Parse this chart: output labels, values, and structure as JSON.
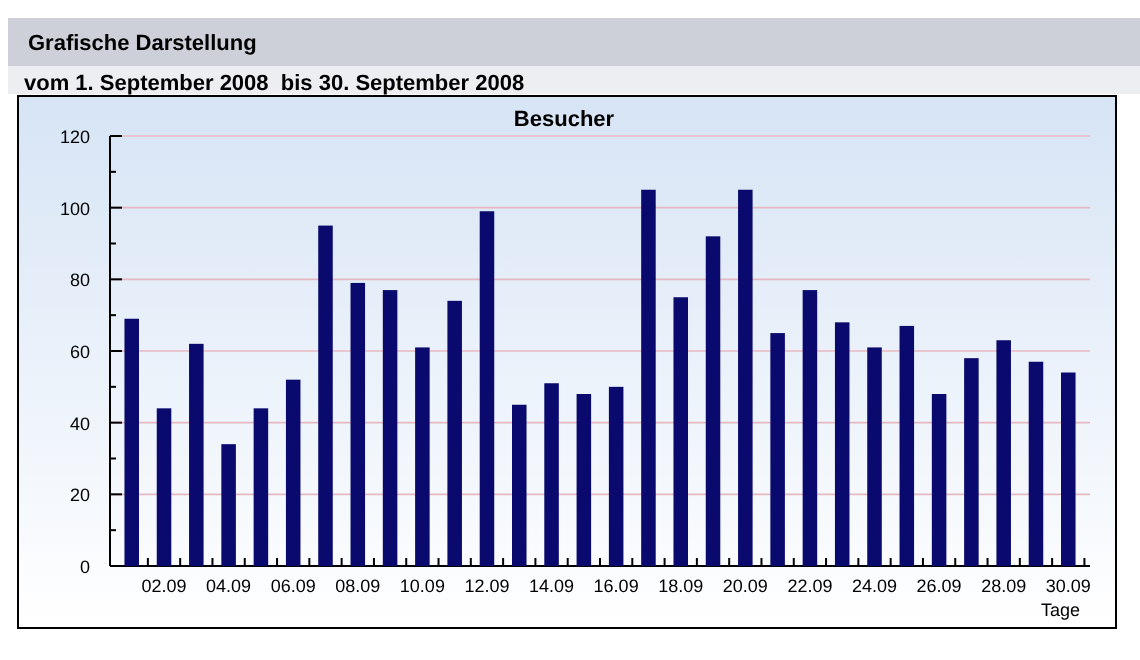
{
  "chart_data": {
    "type": "bar",
    "title": "Grafische Darstellung",
    "subtitle": "vom 1. September 2008  bis 30. September 2008",
    "annotations": [
      "Besucher"
    ],
    "xlabel": "Tage",
    "categories": [
      null,
      "02.09",
      null,
      "04.09",
      null,
      "06.09",
      null,
      "08.09",
      null,
      "10.09",
      null,
      "12.09",
      null,
      "14.09",
      null,
      "16.09",
      null,
      "18.09",
      null,
      "20.09",
      null,
      "22.09",
      null,
      "24.09",
      null,
      "26.09",
      null,
      "28.09",
      null,
      "30.09"
    ],
    "values": [
      69,
      44,
      62,
      34,
      44,
      52,
      95,
      79,
      77,
      61,
      74,
      99,
      45,
      51,
      48,
      50,
      105,
      75,
      92,
      105,
      65,
      77,
      68,
      61,
      67,
      48,
      58,
      63,
      57,
      54
    ],
    "color": "#0a0a6e",
    "ylim": [
      0,
      120
    ],
    "yticks": [
      0,
      {
        "value": 10,
        "label": null
      },
      20,
      {
        "value": 30,
        "label": null
      },
      40,
      {
        "value": 50,
        "label": null
      },
      60,
      {
        "value": 70,
        "label": null
      },
      80,
      {
        "value": 90,
        "label": null
      },
      100,
      {
        "value": 110,
        "label": null
      },
      120
    ],
    "grid": "y"
  }
}
